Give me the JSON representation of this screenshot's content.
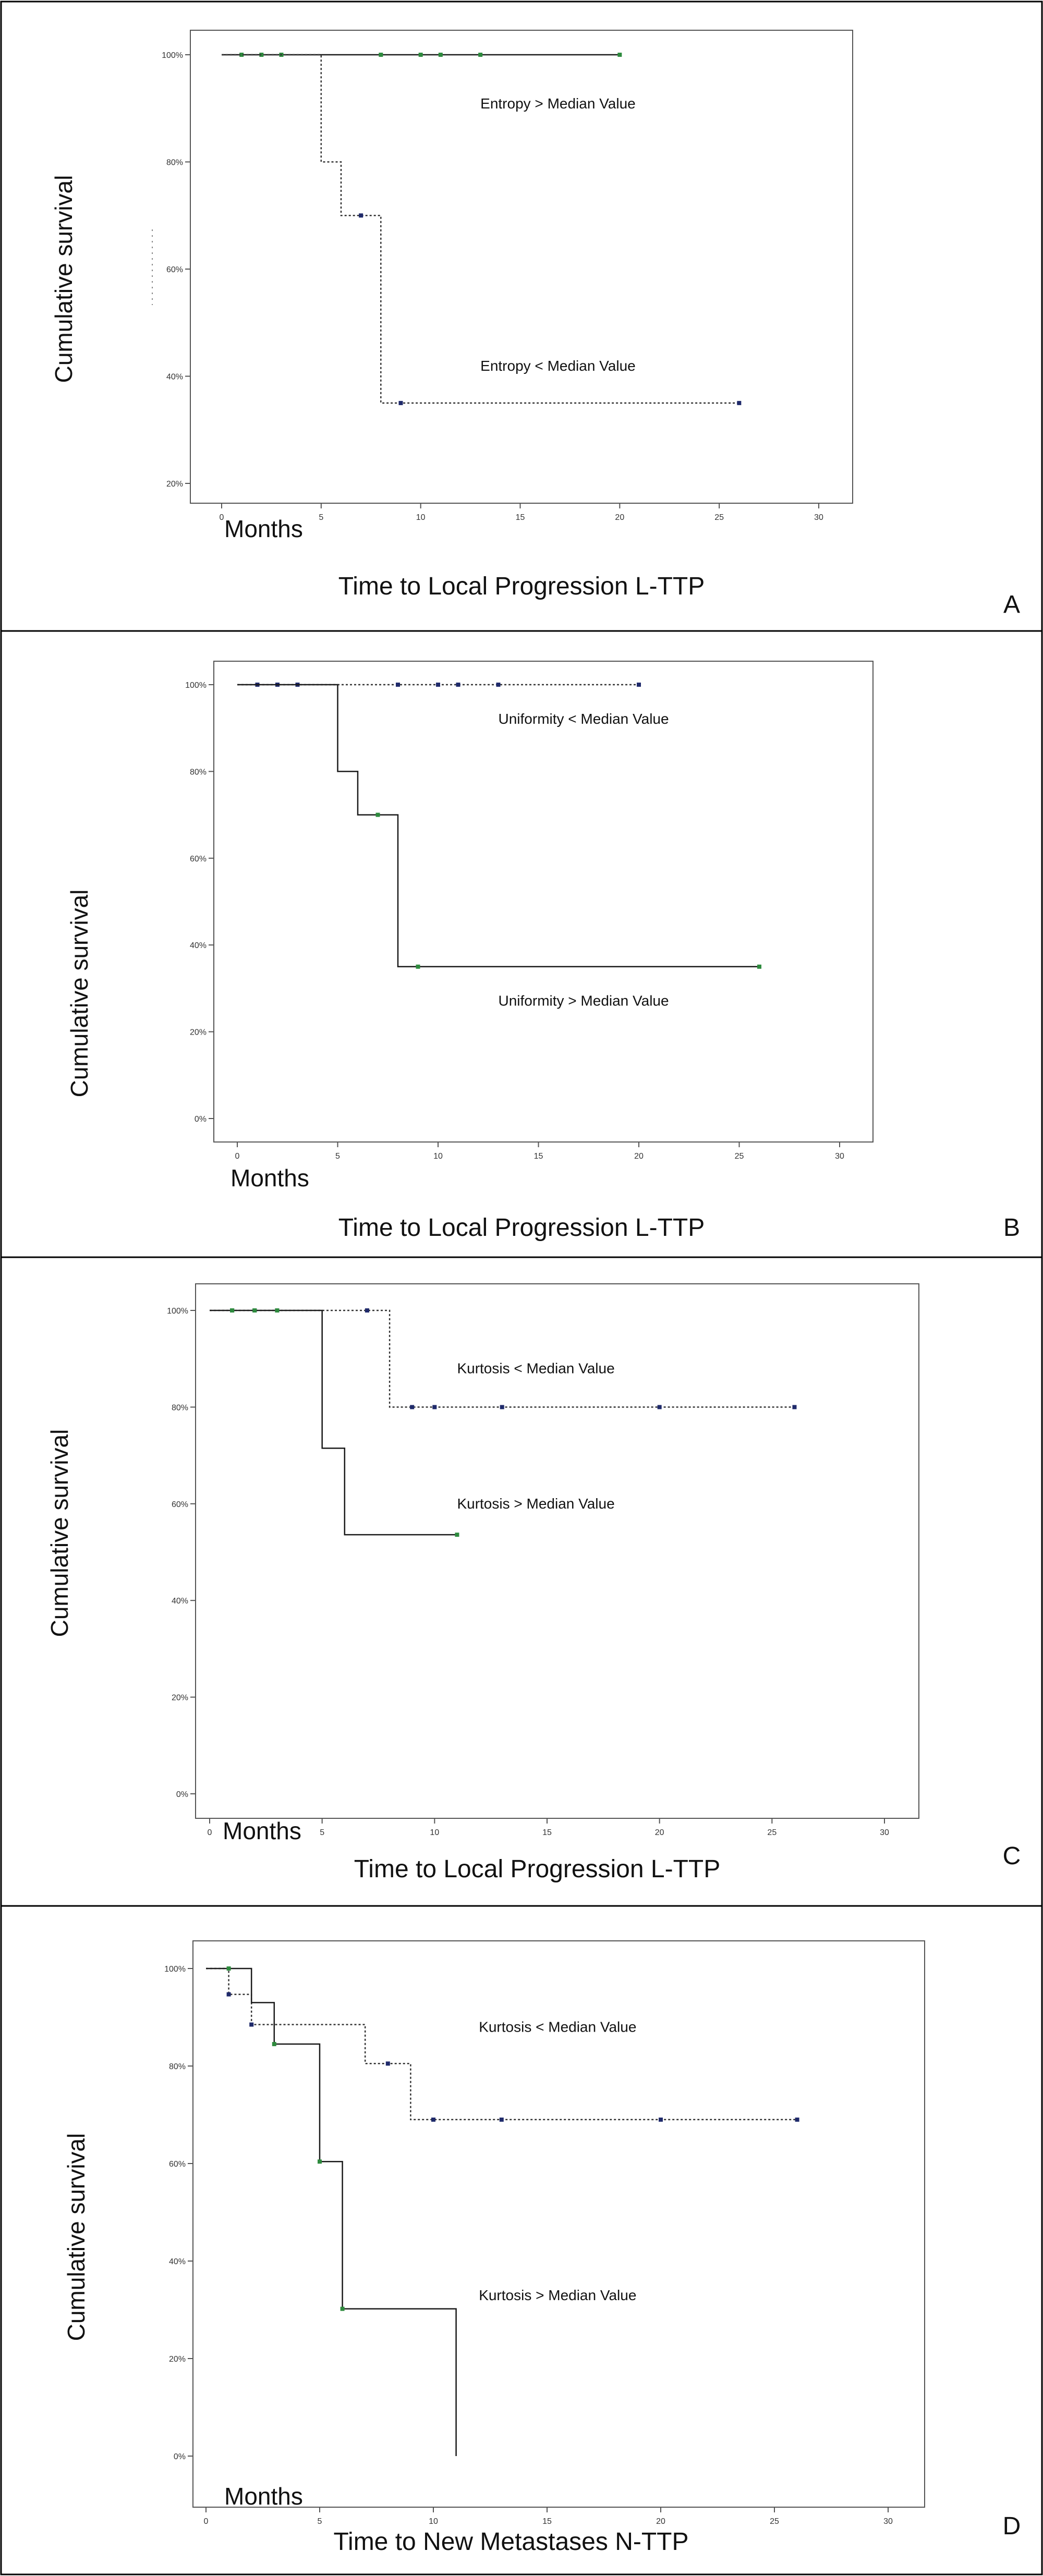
{
  "chart_data": [
    {
      "type": "line",
      "panel_letter": "A",
      "ylabel": "Cumulative survival",
      "months_label": "Months",
      "xlabel": "Time to Local Progression L-TTP",
      "xticks": [
        "0",
        "5",
        "10",
        "15",
        "20",
        "25",
        "30"
      ],
      "yticks": [
        "20%",
        "40%",
        "60%",
        "80%",
        "100%"
      ],
      "xlim": [
        0,
        30
      ],
      "ylim": [
        20,
        100
      ],
      "grid": false,
      "series": [
        {
          "name": "Entropy > Median Value",
          "style": "solid",
          "steps": [
            [
              0,
              100
            ],
            [
              20,
              100
            ]
          ],
          "censored": [
            [
              1,
              100
            ],
            [
              2,
              100
            ],
            [
              3,
              100
            ],
            [
              8,
              100
            ],
            [
              10,
              100
            ],
            [
              11,
              100
            ],
            [
              13,
              100
            ],
            [
              20,
              100
            ]
          ],
          "label_at": [
            13,
            90
          ]
        },
        {
          "name": "Entropy < Median Value",
          "style": "dotted",
          "steps": [
            [
              0,
              100
            ],
            [
              5,
              100
            ],
            [
              5,
              80
            ],
            [
              6,
              80
            ],
            [
              6,
              70
            ],
            [
              8,
              70
            ],
            [
              8,
              35
            ],
            [
              26,
              35
            ]
          ],
          "censored": [
            [
              7,
              70
            ],
            [
              9,
              35
            ],
            [
              26,
              35
            ]
          ],
          "label_at": [
            13,
            41
          ]
        }
      ]
    },
    {
      "type": "line",
      "panel_letter": "B",
      "ylabel": "Cumulative survival",
      "months_label": "Months",
      "xlabel": "Time to Local Progression L-TTP",
      "xticks": [
        "0",
        "5",
        "10",
        "15",
        "20",
        "25",
        "30"
      ],
      "yticks": [
        "0%",
        "20%",
        "40%",
        "60%",
        "80%",
        "100%"
      ],
      "xlim": [
        0,
        30
      ],
      "ylim": [
        0,
        100
      ],
      "grid": false,
      "series": [
        {
          "name": "Uniformity < Median Value",
          "style": "dotted",
          "steps": [
            [
              0,
              100
            ],
            [
              20,
              100
            ]
          ],
          "censored": [
            [
              1,
              100
            ],
            [
              2,
              100
            ],
            [
              3,
              100
            ],
            [
              8,
              100
            ],
            [
              10,
              100
            ],
            [
              11,
              100
            ],
            [
              13,
              100
            ],
            [
              20,
              100
            ]
          ],
          "label_at": [
            13,
            91
          ]
        },
        {
          "name": "Uniformity > Median Value",
          "style": "solid",
          "steps": [
            [
              0,
              100
            ],
            [
              5,
              100
            ],
            [
              5,
              80
            ],
            [
              6,
              80
            ],
            [
              6,
              70
            ],
            [
              8,
              70
            ],
            [
              8,
              35
            ],
            [
              26,
              35
            ]
          ],
          "censored": [
            [
              7,
              70
            ],
            [
              9,
              35
            ],
            [
              26,
              35
            ]
          ],
          "label_at": [
            13,
            26
          ]
        }
      ]
    },
    {
      "type": "line",
      "panel_letter": "C",
      "ylabel": "Cumulative survival",
      "months_label": "Months",
      "xlabel": "Time to Local Progression L-TTP",
      "xticks": [
        "0",
        "5",
        "10",
        "15",
        "20",
        "25",
        "30"
      ],
      "yticks": [
        "0%",
        "20%",
        "40%",
        "60%",
        "80%",
        "100%"
      ],
      "xlim": [
        0,
        30
      ],
      "ylim": [
        0,
        100
      ],
      "grid": false,
      "series": [
        {
          "name": "Kurtosis < Median Value",
          "style": "dotted",
          "steps": [
            [
              0,
              100
            ],
            [
              8,
              100
            ],
            [
              8,
              80
            ],
            [
              26,
              80
            ]
          ],
          "censored": [
            [
              1,
              100
            ],
            [
              2,
              100
            ],
            [
              3,
              100
            ],
            [
              7,
              100
            ],
            [
              9,
              80
            ],
            [
              10,
              80
            ],
            [
              13,
              80
            ],
            [
              20,
              80
            ],
            [
              26,
              80
            ]
          ],
          "label_at": [
            11,
            87
          ]
        },
        {
          "name": "Kurtosis > Median Value",
          "style": "solid",
          "steps": [
            [
              0,
              100
            ],
            [
              5,
              100
            ],
            [
              5,
              71.5
            ],
            [
              6,
              71.5
            ],
            [
              6,
              53.6
            ],
            [
              11,
              53.6
            ]
          ],
          "censored": [
            [
              1,
              100
            ],
            [
              2,
              100
            ],
            [
              3,
              100
            ],
            [
              11,
              53.6
            ]
          ],
          "label_at": [
            11,
            59
          ]
        }
      ]
    },
    {
      "type": "line",
      "panel_letter": "D",
      "ylabel": "Cumulative survival",
      "months_label": "Months",
      "xlabel": "Time to New Metastases N-TTP",
      "xticks": [
        "0",
        "5",
        "10",
        "15",
        "20",
        "25",
        "30"
      ],
      "yticks": [
        "0%",
        "20%",
        "40%",
        "60%",
        "80%",
        "100%"
      ],
      "xlim": [
        0,
        30
      ],
      "ylim": [
        0,
        100
      ],
      "grid": false,
      "series": [
        {
          "name": "Kurtosis < Median Value",
          "style": "dotted",
          "steps": [
            [
              0,
              100
            ],
            [
              1,
              100
            ],
            [
              1,
              94.7
            ],
            [
              2,
              94.7
            ],
            [
              2,
              88.5
            ],
            [
              7,
              88.5
            ],
            [
              7,
              80.5
            ],
            [
              9,
              80.5
            ],
            [
              9,
              69
            ],
            [
              26,
              69
            ]
          ],
          "censored": [
            [
              1,
              94.7
            ],
            [
              2,
              88.5
            ],
            [
              8,
              80.5
            ],
            [
              10,
              69
            ],
            [
              13,
              69
            ],
            [
              20,
              69
            ],
            [
              26,
              69
            ]
          ],
          "label_at": [
            12,
            87
          ]
        },
        {
          "name": "Kurtosis > Median Value",
          "style": "solid",
          "steps": [
            [
              0,
              100
            ],
            [
              2,
              100
            ],
            [
              2,
              93
            ],
            [
              3,
              93
            ],
            [
              3,
              84.5
            ],
            [
              5,
              84.5
            ],
            [
              5,
              60.4
            ],
            [
              6,
              60.4
            ],
            [
              6,
              30.2
            ],
            [
              11,
              30.2
            ],
            [
              11,
              0
            ]
          ],
          "censored": [
            [
              1,
              100
            ],
            [
              3,
              84.5
            ],
            [
              5,
              60.4
            ],
            [
              6,
              30.2
            ]
          ],
          "label_at": [
            12,
            32
          ]
        }
      ]
    }
  ],
  "colors": {
    "solid_line": "#1a1a1a",
    "dotted_line": "#333333",
    "censor_green": "#2e8b3e",
    "censor_dark": "#1f2a6b",
    "frame": "#000000",
    "plot_border": "#555555"
  }
}
